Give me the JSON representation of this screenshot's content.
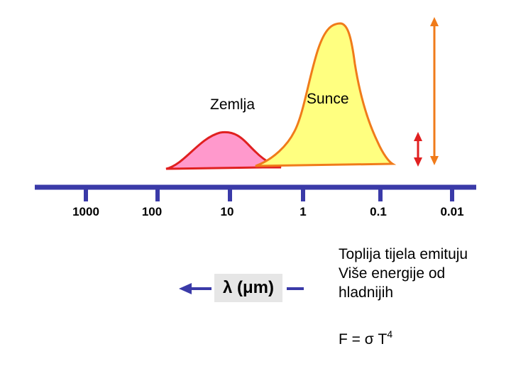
{
  "curves": [
    {
      "label": "Zemlja",
      "fill": "#ff99cc",
      "stroke": "#e02020"
    },
    {
      "label": "Sunce",
      "fill": "#ffff80",
      "stroke": "#f07b1a"
    }
  ],
  "axis": {
    "color": "#3a3aa8",
    "ticks": [
      "1000",
      "100",
      "10",
      "1",
      "0.1",
      "0.01"
    ]
  },
  "unit": {
    "symbol": "λ",
    "text": "(μm)"
  },
  "arrows": {
    "color": "#f07b1a",
    "red": "#e02020"
  },
  "note": {
    "lines": [
      "Toplija tijela emituju",
      "Više energije od",
      "hladnijih"
    ],
    "formula_prefix": "F = σ T",
    "formula_exponent": "4"
  }
}
